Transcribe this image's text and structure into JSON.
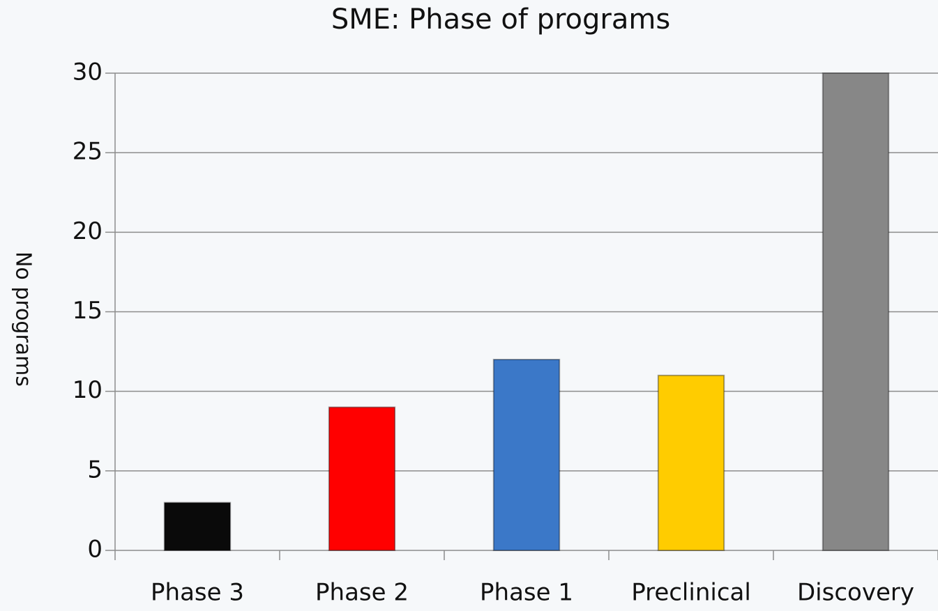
{
  "chart_data": {
    "type": "bar",
    "title": "SME: Phase of programs",
    "y_label": "No programs",
    "categories": [
      "Phase 3",
      "Phase 2",
      "Phase 1",
      "Preclinical",
      "Discovery"
    ],
    "values": [
      3,
      9,
      12,
      11,
      30
    ],
    "colors": [
      "#0a0a0a",
      "#ff0000",
      "#3b78c8",
      "#ffcc00",
      "#878787"
    ],
    "ylim": [
      0,
      30
    ],
    "yticks": [
      0,
      5,
      10,
      15,
      20,
      25,
      30
    ],
    "grid": true
  }
}
